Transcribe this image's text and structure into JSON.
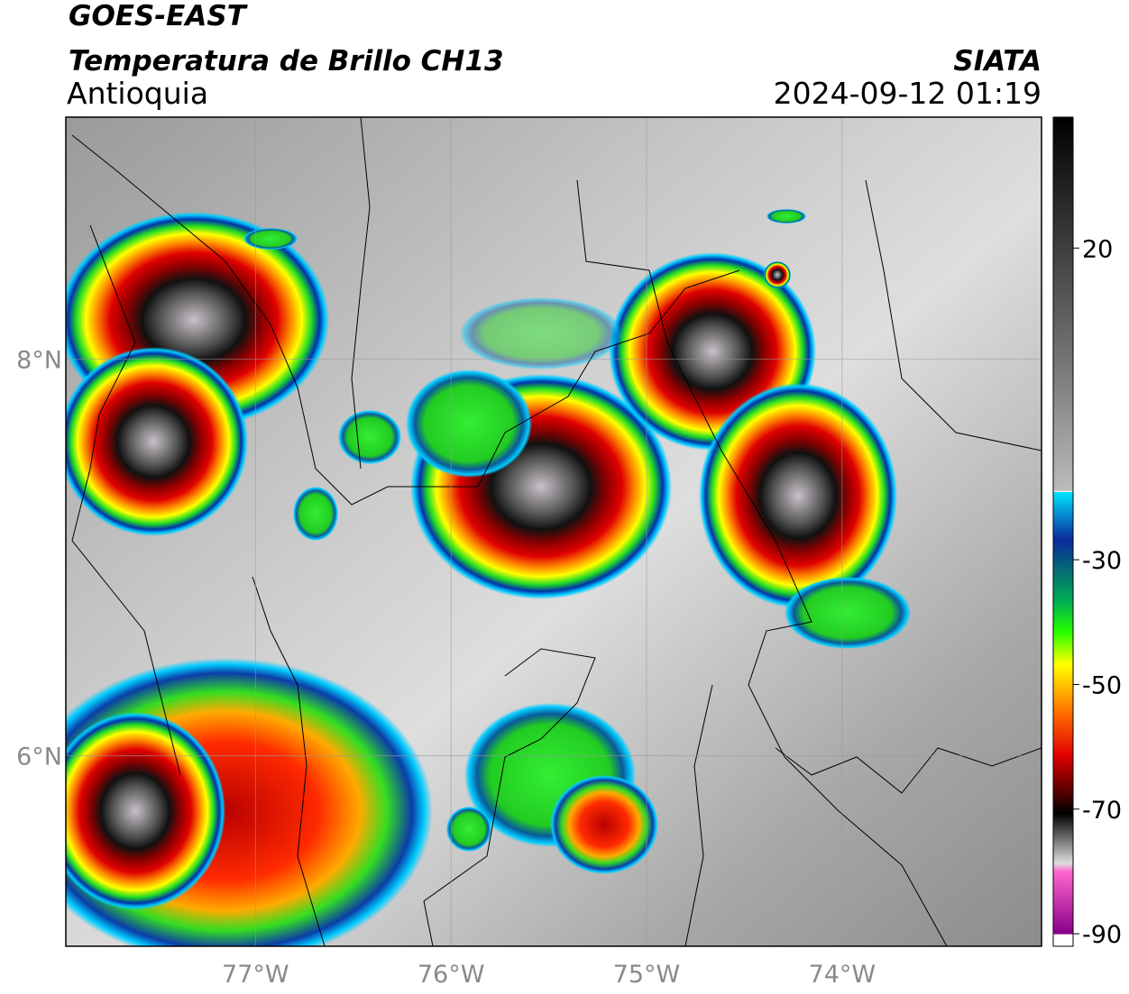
{
  "header": {
    "title": "GOES-EAST",
    "subtitle": "Temperatura de Brillo CH13",
    "region": "Antioquia",
    "source": "SIATA",
    "datetime": "2024-09-12 01:19"
  },
  "map": {
    "lonlim": [
      -77.97,
      -72.98
    ],
    "latlim": [
      5.04,
      9.22
    ],
    "lon_ticks": [
      {
        "value": -77,
        "label": "77°W"
      },
      {
        "value": -76,
        "label": "76°W"
      },
      {
        "value": -75,
        "label": "75°W"
      },
      {
        "value": -74,
        "label": "74°W"
      }
    ],
    "lat_ticks": [
      {
        "value": 8,
        "label": "8°N"
      },
      {
        "value": 6,
        "label": "6°N"
      }
    ]
  },
  "colorbar": {
    "clim": [
      -92,
      41
    ],
    "ticks": [
      20,
      -30,
      -50,
      -70,
      -90
    ]
  }
}
